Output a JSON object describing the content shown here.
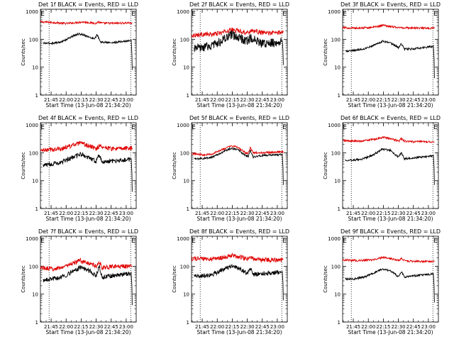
{
  "figure": {
    "colors": {
      "events": "#000000",
      "lld": "#e00000",
      "axes": "#000000",
      "background": "#ffffff"
    }
  },
  "chart_data": [
    {
      "type": "line",
      "title": "Det 1f BLACK = Events, RED = LLD",
      "xlabel": "Start Time (13-Jun-08 21:34:20)",
      "ylabel": "Counts/sec",
      "xlim": [
        "21:34:20",
        "23:10:00"
      ],
      "ylim": [
        1,
        1200
      ],
      "yscale": "log",
      "xticks": [
        "21:45",
        "22:00",
        "22:15",
        "22:30",
        "22:45",
        "23:00"
      ],
      "yticks": [
        "1",
        "10",
        "100",
        "1000"
      ],
      "markers": [
        {
          "label": "E",
          "time": "21:34:30"
        },
        {
          "label": "E",
          "time": "23:05:00"
        }
      ],
      "vlines": [
        "21:43:00",
        "23:04:30"
      ],
      "series": [
        {
          "color": "#e00000",
          "noise": "low",
          "x": [
            "21:34:20",
            "21:48:00",
            "22:00:00",
            "22:08:00",
            "22:16:00",
            "22:24:00",
            "22:30:00",
            "22:32:00",
            "22:36:00",
            "22:45:00",
            "22:55:00",
            "23:02:00",
            "23:06:00"
          ],
          "y": [
            420,
            400,
            370,
            390,
            420,
            395,
            375,
            420,
            380,
            375,
            380,
            390,
            380
          ]
        },
        {
          "color": "#000000",
          "noise": "low",
          "x": [
            "21:37:00",
            "21:45:00",
            "21:55:00",
            "22:05:00",
            "22:12:00",
            "22:18:00",
            "22:25:00",
            "22:29:00",
            "22:31:00",
            "22:34:00",
            "22:45:00",
            "22:55:00",
            "23:04:00",
            "23:05:00",
            "23:05:40",
            "23:06:00"
          ],
          "y": [
            72,
            72,
            80,
            120,
            155,
            145,
            110,
            110,
            150,
            80,
            75,
            82,
            90,
            95,
            30,
            8
          ]
        }
      ]
    },
    {
      "type": "line",
      "title": "Det 2f BLACK = Events, RED = LLD",
      "xlabel": "Start Time (13-Jun-08 21:34:20)",
      "ylabel": "Counts/sec",
      "xlim": [
        "21:34:20",
        "23:10:00"
      ],
      "ylim": [
        1,
        1200
      ],
      "yscale": "log",
      "xticks": [
        "21:45",
        "22:00",
        "22:15",
        "22:30",
        "22:45",
        "23:00"
      ],
      "yticks": [
        "1",
        "10",
        "100",
        "1000"
      ],
      "markers": [
        {
          "label": "E",
          "time": "21:34:30"
        },
        {
          "label": "E",
          "time": "23:05:00"
        }
      ],
      "vlines": [
        "21:43:00",
        "23:04:30"
      ],
      "series": [
        {
          "color": "#e00000",
          "noise": "mid",
          "x": [
            "21:34:20",
            "21:45:00",
            "21:55:00",
            "22:05:00",
            "22:14:00",
            "22:22:00",
            "22:30:00",
            "22:34:00",
            "22:45:00",
            "22:55:00",
            "23:06:00"
          ],
          "y": [
            140,
            150,
            150,
            175,
            220,
            200,
            170,
            210,
            170,
            170,
            180
          ]
        },
        {
          "color": "#000000",
          "noise": "high",
          "x": [
            "21:37:00",
            "21:45:00",
            "21:55:00",
            "22:05:00",
            "22:14:00",
            "22:22:00",
            "22:30:00",
            "22:33:00",
            "22:45:00",
            "22:55:00",
            "23:04:00",
            "23:05:00",
            "23:05:40",
            "23:06:00"
          ],
          "y": [
            45,
            50,
            60,
            90,
            140,
            115,
            85,
            110,
            70,
            75,
            85,
            90,
            40,
            12
          ]
        }
      ]
    },
    {
      "type": "line",
      "title": "Det 3f BLACK = Events, RED = LLD",
      "xlabel": "Start Time (13-Jun-08 21:34:20)",
      "ylabel": "Counts/sec",
      "xlim": [
        "21:34:20",
        "23:10:00"
      ],
      "ylim": [
        1,
        1200
      ],
      "yscale": "log",
      "xticks": [
        "21:45",
        "22:00",
        "22:15",
        "22:30",
        "22:45",
        "23:00"
      ],
      "yticks": [
        "1",
        "10",
        "100",
        "1000"
      ],
      "markers": [
        {
          "label": "E",
          "time": "21:34:30"
        },
        {
          "label": "E",
          "time": "23:05:00"
        }
      ],
      "vlines": [
        "21:43:00",
        "23:04:30"
      ],
      "series": [
        {
          "color": "#e00000",
          "noise": "low",
          "x": [
            "21:34:20",
            "21:50:00",
            "22:05:00",
            "22:15:00",
            "22:25:00",
            "22:32:00",
            "22:45:00",
            "23:06:00"
          ],
          "y": [
            260,
            250,
            270,
            320,
            280,
            260,
            255,
            250
          ]
        },
        {
          "color": "#000000",
          "noise": "low",
          "x": [
            "21:37:00",
            "21:45:00",
            "21:55:00",
            "22:05:00",
            "22:14:00",
            "22:22:00",
            "22:30:00",
            "22:33:00",
            "22:36:00",
            "22:45:00",
            "23:04:00",
            "23:05:00",
            "23:05:40",
            "23:06:00"
          ],
          "y": [
            38,
            40,
            45,
            60,
            85,
            75,
            50,
            70,
            45,
            45,
            55,
            60,
            20,
            4
          ]
        }
      ]
    },
    {
      "type": "line",
      "title": "Det 4f BLACK = Events, RED = LLD",
      "xlabel": "Start Time (13-Jun-08 21:34:20)",
      "ylabel": "Counts/sec",
      "xlim": [
        "21:34:20",
        "23:10:00"
      ],
      "ylim": [
        1,
        1200
      ],
      "yscale": "log",
      "xticks": [
        "21:45",
        "22:00",
        "22:15",
        "22:30",
        "22:45",
        "23:00"
      ],
      "yticks": [
        "1",
        "10",
        "100",
        "1000"
      ],
      "markers": [
        {
          "label": "E",
          "time": "21:34:30"
        },
        {
          "label": "E",
          "time": "23:05:00"
        }
      ],
      "vlines": [
        "21:43:00",
        "23:04:30"
      ],
      "series": [
        {
          "color": "#e00000",
          "noise": "mid",
          "x": [
            "21:34:20",
            "21:45:00",
            "21:55:00",
            "22:05:00",
            "22:14:00",
            "22:22:00",
            "22:30:00",
            "22:33:00",
            "22:45:00",
            "22:55:00",
            "23:06:00"
          ],
          "y": [
            120,
            130,
            140,
            180,
            220,
            180,
            140,
            175,
            140,
            140,
            150
          ]
        },
        {
          "color": "#000000",
          "noise": "mid",
          "x": [
            "21:37:00",
            "21:45:00",
            "21:55:00",
            "22:05:00",
            "22:14:00",
            "22:22:00",
            "22:30:00",
            "22:33:00",
            "22:36:00",
            "22:45:00",
            "23:04:00",
            "23:05:00",
            "23:05:40",
            "23:06:00"
          ],
          "y": [
            35,
            40,
            45,
            65,
            90,
            70,
            50,
            85,
            45,
            50,
            58,
            62,
            20,
            4
          ]
        }
      ]
    },
    {
      "type": "line",
      "title": "Det 5f BLACK = Events, RED = LLD",
      "xlabel": "Start Time (13-Jun-08 21:34:20)",
      "ylabel": "Counts/sec",
      "xlim": [
        "21:34:20",
        "23:10:00"
      ],
      "ylim": [
        1,
        1200
      ],
      "yscale": "log",
      "xticks": [
        "21:45",
        "22:00",
        "22:15",
        "22:30",
        "22:45",
        "23:00"
      ],
      "yticks": [
        "1",
        "10",
        "100",
        "1000"
      ],
      "markers": [
        {
          "label": "E",
          "time": "21:34:30"
        },
        {
          "label": "E",
          "time": "23:05:00"
        }
      ],
      "vlines": [
        "21:43:00",
        "23:04:30"
      ],
      "series": [
        {
          "color": "#e00000",
          "noise": "low",
          "x": [
            "21:34:20",
            "21:45:00",
            "21:55:00",
            "22:05:00",
            "22:13:00",
            "22:20:00",
            "22:28:00",
            "22:31:00",
            "22:33:00",
            "22:36:00",
            "22:45:00",
            "23:06:00"
          ],
          "y": [
            95,
            85,
            90,
            130,
            170,
            165,
            100,
            95,
            150,
            100,
            100,
            110
          ]
        },
        {
          "color": "#000000",
          "noise": "low",
          "x": [
            "21:37:00",
            "21:45:00",
            "21:55:00",
            "22:05:00",
            "22:13:00",
            "22:20:00",
            "22:28:00",
            "22:31:00",
            "22:33:00",
            "22:36:00",
            "22:45:00",
            "23:04:00",
            "23:05:00",
            "23:05:40",
            "23:06:00"
          ],
          "y": [
            60,
            62,
            70,
            105,
            140,
            135,
            80,
            75,
            120,
            70,
            80,
            85,
            90,
            30,
            7
          ]
        }
      ]
    },
    {
      "type": "line",
      "title": "Det 6f BLACK = Events, RED = LLD",
      "xlabel": "Start Time (13-Jun-08 21:34:20)",
      "ylabel": "Counts/sec",
      "xlim": [
        "21:34:20",
        "23:10:00"
      ],
      "ylim": [
        1,
        1200
      ],
      "yscale": "log",
      "xticks": [
        "21:45",
        "22:00",
        "22:15",
        "22:30",
        "22:45",
        "23:00"
      ],
      "yticks": [
        "1",
        "10",
        "100",
        "1000"
      ],
      "markers": [
        {
          "label": "E",
          "time": "21:34:30"
        },
        {
          "label": "E",
          "time": "23:05:00"
        }
      ],
      "vlines": [
        "21:43:00",
        "23:04:30"
      ],
      "series": [
        {
          "color": "#e00000",
          "noise": "low",
          "x": [
            "21:34:20",
            "21:50:00",
            "22:05:00",
            "22:15:00",
            "22:25:00",
            "22:31:00",
            "22:33:00",
            "22:36:00",
            "22:45:00",
            "23:06:00"
          ],
          "y": [
            270,
            260,
            300,
            360,
            300,
            270,
            330,
            260,
            250,
            250
          ]
        },
        {
          "color": "#000000",
          "noise": "low",
          "x": [
            "21:37:00",
            "21:45:00",
            "21:55:00",
            "22:05:00",
            "22:14:00",
            "22:22:00",
            "22:30:00",
            "22:33:00",
            "22:36:00",
            "22:45:00",
            "23:04:00",
            "23:05:00",
            "23:05:40",
            "23:06:00"
          ],
          "y": [
            55,
            55,
            60,
            85,
            135,
            120,
            70,
            100,
            60,
            65,
            78,
            82,
            30,
            7
          ]
        }
      ]
    },
    {
      "type": "line",
      "title": "Det 7f BLACK = Events, RED = LLD",
      "xlabel": "Start Time (13-Jun-08 21:34:20)",
      "ylabel": "Counts/sec",
      "xlim": [
        "21:34:20",
        "23:10:00"
      ],
      "ylim": [
        1,
        1200
      ],
      "yscale": "log",
      "xticks": [
        "21:45",
        "22:00",
        "22:15",
        "22:30",
        "22:45",
        "23:00"
      ],
      "yticks": [
        "1",
        "10",
        "100",
        "1000"
      ],
      "markers": [
        {
          "label": "E",
          "time": "21:34:30"
        },
        {
          "label": "E",
          "time": "23:05:00"
        }
      ],
      "vlines": [
        "21:43:00",
        "23:04:30"
      ],
      "series": [
        {
          "color": "#e00000",
          "noise": "mid",
          "x": [
            "21:34:20",
            "21:45:00",
            "21:55:00",
            "22:05:00",
            "22:14:00",
            "22:22:00",
            "22:30:00",
            "22:33:00",
            "22:36:00",
            "22:45:00",
            "23:06:00"
          ],
          "y": [
            90,
            80,
            90,
            120,
            160,
            130,
            100,
            150,
            90,
            95,
            100
          ]
        },
        {
          "color": "#000000",
          "noise": "mid",
          "x": [
            "21:37:00",
            "21:45:00",
            "21:55:00",
            "22:05:00",
            "22:14:00",
            "22:22:00",
            "22:30:00",
            "22:33:00",
            "22:36:00",
            "22:45:00",
            "23:04:00",
            "23:05:00",
            "23:05:40",
            "23:06:00"
          ],
          "y": [
            30,
            35,
            40,
            60,
            90,
            75,
            45,
            100,
            40,
            45,
            55,
            60,
            20,
            4
          ]
        }
      ]
    },
    {
      "type": "line",
      "title": "Det 8f BLACK = Events, RED = LLD",
      "xlabel": "Start Time (13-Jun-08 21:34:20)",
      "ylabel": "Counts/sec",
      "xlim": [
        "21:34:20",
        "23:10:00"
      ],
      "ylim": [
        1,
        1200
      ],
      "yscale": "log",
      "xticks": [
        "21:45",
        "22:00",
        "22:15",
        "22:30",
        "22:45",
        "23:00"
      ],
      "yticks": [
        "1",
        "10",
        "100",
        "1000"
      ],
      "markers": [
        {
          "label": "E",
          "time": "21:34:30"
        },
        {
          "label": "E",
          "time": "23:05:00"
        }
      ],
      "vlines": [
        "21:43:00",
        "23:04:30"
      ],
      "series": [
        {
          "color": "#e00000",
          "noise": "mid",
          "x": [
            "21:34:20",
            "21:50:00",
            "22:05:00",
            "22:15:00",
            "22:25:00",
            "22:31:00",
            "22:33:00",
            "22:36:00",
            "22:45:00",
            "23:06:00"
          ],
          "y": [
            190,
            180,
            200,
            250,
            210,
            180,
            230,
            180,
            170,
            170
          ]
        },
        {
          "color": "#000000",
          "noise": "mid",
          "x": [
            "21:37:00",
            "21:45:00",
            "21:55:00",
            "22:05:00",
            "22:14:00",
            "22:22:00",
            "22:30:00",
            "22:33:00",
            "22:36:00",
            "22:45:00",
            "23:04:00",
            "23:05:00",
            "23:05:40",
            "23:06:00"
          ],
          "y": [
            45,
            45,
            50,
            75,
            100,
            85,
            55,
            85,
            50,
            55,
            62,
            65,
            25,
            6
          ]
        }
      ]
    },
    {
      "type": "line",
      "title": "Det 9f BLACK = Events, RED = LLD",
      "xlabel": "Start Time (13-Jun-08 21:34:20)",
      "ylabel": "Counts/sec",
      "xlim": [
        "21:34:20",
        "23:10:00"
      ],
      "ylim": [
        1,
        1200
      ],
      "yscale": "log",
      "xticks": [
        "21:45",
        "22:00",
        "22:15",
        "22:30",
        "22:45",
        "23:00"
      ],
      "yticks": [
        "1",
        "10",
        "100",
        "1000"
      ],
      "markers": [
        {
          "label": "E",
          "time": "21:34:30"
        },
        {
          "label": "E",
          "time": "23:05:00"
        }
      ],
      "vlines": [
        "21:43:00",
        "23:04:30"
      ],
      "series": [
        {
          "color": "#e00000",
          "noise": "low",
          "x": [
            "21:34:20",
            "21:50:00",
            "22:05:00",
            "22:15:00",
            "22:25:00",
            "22:31:00",
            "22:33:00",
            "22:36:00",
            "22:45:00",
            "23:06:00"
          ],
          "y": [
            170,
            160,
            170,
            210,
            180,
            160,
            200,
            160,
            150,
            150
          ]
        },
        {
          "color": "#000000",
          "noise": "low",
          "x": [
            "21:37:00",
            "21:45:00",
            "21:55:00",
            "22:05:00",
            "22:14:00",
            "22:22:00",
            "22:30:00",
            "22:33:00",
            "22:36:00",
            "22:45:00",
            "23:04:00",
            "23:05:00",
            "23:05:40",
            "23:06:00"
          ],
          "y": [
            35,
            35,
            40,
            55,
            80,
            70,
            42,
            65,
            40,
            45,
            52,
            55,
            20,
            5
          ]
        }
      ]
    }
  ]
}
